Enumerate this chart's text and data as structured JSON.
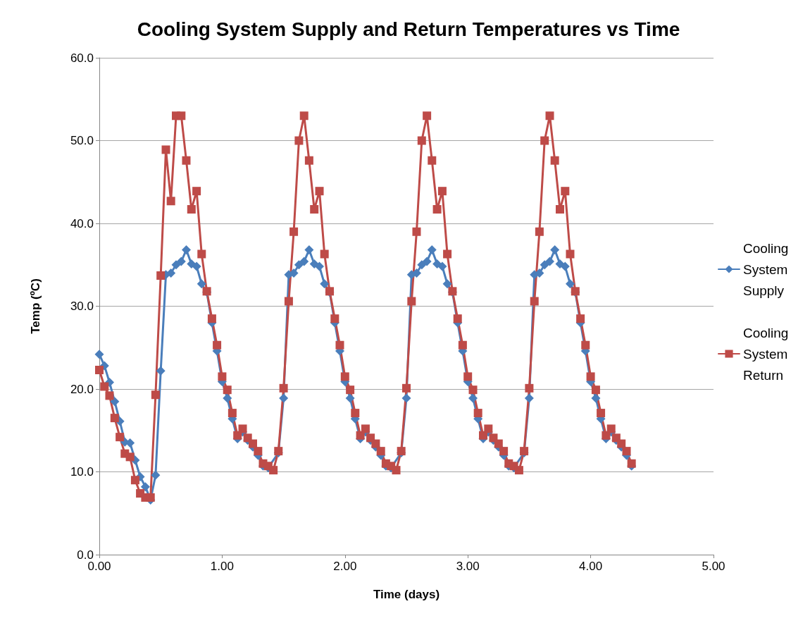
{
  "chart_data": {
    "type": "line",
    "title": "Cooling System Supply and Return Temperatures vs Time",
    "xlabel": "Time (days)",
    "ylabel": "Temp (ºC)",
    "x": [
      0,
      0.042,
      0.083,
      0.125,
      0.167,
      0.208,
      0.25,
      0.292,
      0.333,
      0.375,
      0.417,
      0.458,
      0.5,
      0.542,
      0.583,
      0.625,
      0.667,
      0.708,
      0.75,
      0.792,
      0.833,
      0.875,
      0.917,
      0.958,
      1,
      1.042,
      1.083,
      1.125,
      1.167,
      1.208,
      1.25,
      1.292,
      1.333,
      1.375,
      1.417,
      1.458,
      1.5,
      1.542,
      1.583,
      1.625,
      1.667,
      1.708,
      1.75,
      1.792,
      1.833,
      1.875,
      1.917,
      1.958,
      2,
      2.042,
      2.083,
      2.125,
      2.167,
      2.208,
      2.25,
      2.292,
      2.333,
      2.375,
      2.417,
      2.458,
      2.5,
      2.542,
      2.583,
      2.625,
      2.667,
      2.708,
      2.75,
      2.792,
      2.833,
      2.875,
      2.917,
      2.958,
      3,
      3.042,
      3.083,
      3.125,
      3.167,
      3.208,
      3.25,
      3.292,
      3.333,
      3.375,
      3.417,
      3.458,
      3.5,
      3.542,
      3.583,
      3.625,
      3.667,
      3.708,
      3.75,
      3.792,
      3.833,
      3.875,
      3.917,
      3.958,
      4,
      4.042,
      4.083,
      4.125,
      4.167,
      4.208,
      4.25,
      4.292,
      4.333
    ],
    "series": [
      {
        "name": "Cooling System Supply",
        "color": "#4a7ebb",
        "marker": "diamond",
        "values": [
          24.2,
          22.8,
          20.8,
          18.5,
          16.1,
          13.6,
          13.5,
          11.4,
          9.4,
          8.2,
          6.6,
          9.6,
          22.2,
          33.8,
          34.0,
          35.0,
          35.4,
          36.8,
          35.1,
          34.8,
          32.7,
          31.7,
          28.0,
          24.6,
          20.9,
          18.9,
          16.4,
          14.0,
          14.8,
          13.8,
          13.0,
          12.0,
          10.7,
          10.5,
          null,
          12.3,
          18.9,
          33.8,
          34.0,
          35.0,
          35.4,
          36.8,
          35.1,
          34.8,
          32.7,
          31.7,
          28.0,
          24.6,
          20.9,
          18.9,
          16.4,
          14.0,
          14.8,
          13.8,
          13.0,
          12.0,
          10.7,
          10.5,
          null,
          12.3,
          18.9,
          33.8,
          34.0,
          35.0,
          35.4,
          36.8,
          35.1,
          34.8,
          32.7,
          31.7,
          28.0,
          24.6,
          20.9,
          18.9,
          16.4,
          14.0,
          14.8,
          13.8,
          13.0,
          12.0,
          10.7,
          10.5,
          null,
          12.3,
          18.9,
          33.8,
          34.0,
          35.0,
          35.4,
          36.8,
          35.1,
          34.8,
          32.7,
          31.7,
          28.0,
          24.6,
          20.9,
          18.9,
          16.4,
          14.0,
          14.8,
          13.8,
          13.0,
          12.0,
          10.7
        ]
      },
      {
        "name": "Cooling System Return",
        "color": "#be4b48",
        "marker": "square",
        "values": [
          22.3,
          20.3,
          19.2,
          16.5,
          14.2,
          12.2,
          11.8,
          9.0,
          7.4,
          6.9,
          6.9,
          19.3,
          33.7,
          48.9,
          42.7,
          53.0,
          53.0,
          47.6,
          41.7,
          43.9,
          36.3,
          31.8,
          28.5,
          25.3,
          21.5,
          19.9,
          17.1,
          14.4,
          15.2,
          14.1,
          13.4,
          12.5,
          11.0,
          10.7,
          10.2,
          12.5,
          20.1,
          30.6,
          39.0,
          50.0,
          53.0,
          47.6,
          41.7,
          43.9,
          36.3,
          31.8,
          28.5,
          25.3,
          21.5,
          19.9,
          17.1,
          14.4,
          15.2,
          14.1,
          13.4,
          12.5,
          11.0,
          10.7,
          10.2,
          12.5,
          20.1,
          30.6,
          39.0,
          50.0,
          53.0,
          47.6,
          41.7,
          43.9,
          36.3,
          31.8,
          28.5,
          25.3,
          21.5,
          19.9,
          17.1,
          14.4,
          15.2,
          14.1,
          13.4,
          12.5,
          11.0,
          10.7,
          10.2,
          12.5,
          20.1,
          30.6,
          39.0,
          50.0,
          53.0,
          47.6,
          41.7,
          43.9,
          36.3,
          31.8,
          28.5,
          25.3,
          21.5,
          19.9,
          17.1,
          14.4,
          15.2,
          14.1,
          13.4,
          12.5,
          11.0
        ]
      }
    ],
    "xlim": [
      0,
      5
    ],
    "xticks": [
      {
        "value": 0,
        "label": "0.00"
      },
      {
        "value": 1,
        "label": "1.00"
      },
      {
        "value": 2,
        "label": "2.00"
      },
      {
        "value": 3,
        "label": "3.00"
      },
      {
        "value": 4,
        "label": "4.00"
      },
      {
        "value": 5,
        "label": "5.00"
      }
    ],
    "ylim": [
      0,
      60
    ],
    "yticks": [
      {
        "value": 0,
        "label": "0.0"
      },
      {
        "value": 10,
        "label": "10.0"
      },
      {
        "value": 20,
        "label": "20.0"
      },
      {
        "value": 30,
        "label": "30.0"
      },
      {
        "value": 40,
        "label": "40.0"
      },
      {
        "value": 50,
        "label": "50.0"
      },
      {
        "value": 60,
        "label": "60.0"
      }
    ],
    "grid": "y",
    "legend": "right",
    "line_style": "solid"
  }
}
